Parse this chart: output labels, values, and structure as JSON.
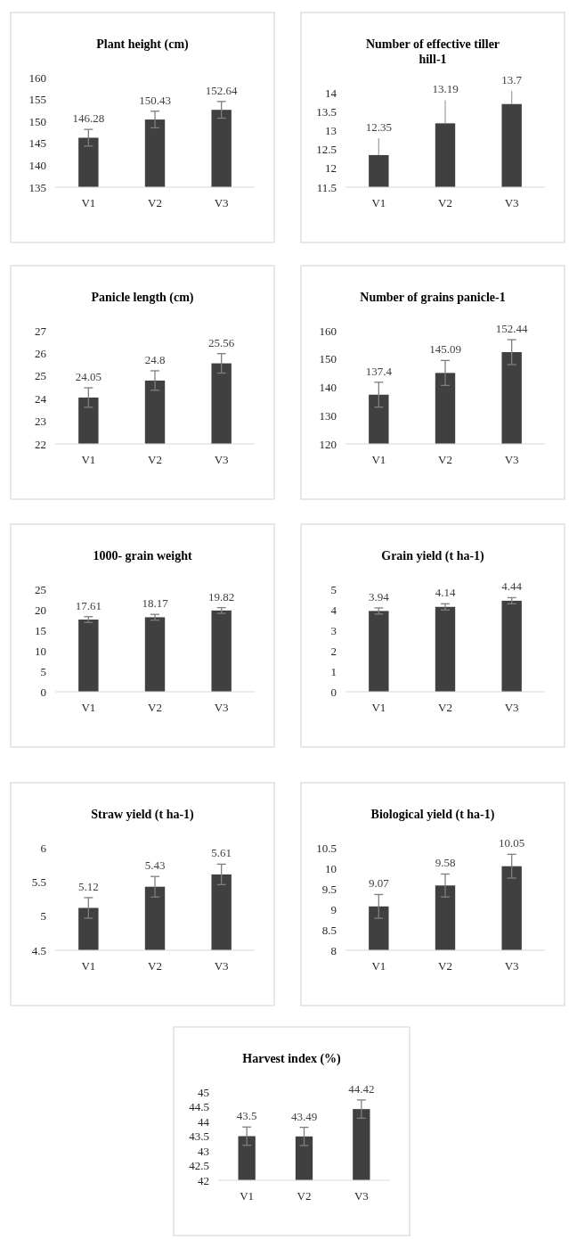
{
  "chart_data": [
    {
      "type": "bar",
      "title": "Plant height (cm)",
      "categories": [
        "V1",
        "V2",
        "V3"
      ],
      "values": [
        146.28,
        150.43,
        152.64
      ],
      "errors": [
        1.9,
        1.9,
        1.9
      ],
      "color": "#404040",
      "ylim": [
        135,
        160
      ],
      "yticks": [
        135,
        140,
        145,
        150,
        155,
        160
      ],
      "data_labels": true
    },
    {
      "type": "bar",
      "title": "Number of effective tiller hill-1",
      "categories": [
        "V1",
        "V2",
        "V3"
      ],
      "values": [
        12.35,
        13.19,
        13.7
      ],
      "errors": [
        [
          12.35,
          12.8
        ],
        [
          13.19,
          13.8
        ],
        [
          13.7,
          14.05
        ]
      ],
      "color": "#404040",
      "ylim": [
        11.5,
        14
      ],
      "yticks": [
        11.5,
        12,
        12.5,
        13,
        13.5,
        14
      ],
      "data_labels": true
    },
    {
      "type": "bar",
      "title": "Panicle length (cm)",
      "categories": [
        "V1",
        "V2",
        "V3"
      ],
      "values": [
        24.05,
        24.8,
        25.56
      ],
      "errors": [
        0.43,
        0.43,
        0.43
      ],
      "color": "#404040",
      "ylim": [
        22,
        27
      ],
      "yticks": [
        22,
        23,
        24,
        25,
        26,
        27
      ],
      "data_labels": true
    },
    {
      "type": "bar",
      "title": "Number of grains panicle-1",
      "categories": [
        "V1",
        "V2",
        "V3"
      ],
      "values": [
        137.4,
        145.09,
        152.44
      ],
      "errors": [
        4.4,
        4.4,
        4.4
      ],
      "color": "#404040",
      "ylim": [
        120,
        160
      ],
      "yticks": [
        120,
        130,
        140,
        150,
        160
      ],
      "data_labels": true
    },
    {
      "type": "bar",
      "title": "1000- grain weight",
      "categories": [
        "V1",
        "V2",
        "V3"
      ],
      "values": [
        17.61,
        18.17,
        19.82
      ],
      "errors": [
        0.7,
        0.7,
        0.7
      ],
      "color": "#404040",
      "ylim": [
        0,
        25
      ],
      "yticks": [
        0,
        5,
        10,
        15,
        20,
        25
      ],
      "data_labels": true
    },
    {
      "type": "bar",
      "title": "Grain yield (t ha-1)",
      "categories": [
        "V1",
        "V2",
        "V3"
      ],
      "values": [
        3.94,
        4.14,
        4.44
      ],
      "errors": [
        0.15,
        0.15,
        0.15
      ],
      "color": "#404040",
      "ylim": [
        0,
        5
      ],
      "yticks": [
        0,
        1,
        2,
        3,
        4,
        5
      ],
      "data_labels": true
    },
    {
      "type": "bar",
      "title": "Straw yield (t ha-1)",
      "categories": [
        "V1",
        "V2",
        "V3"
      ],
      "values": [
        5.12,
        5.43,
        5.61
      ],
      "errors": [
        0.15,
        0.15,
        0.15
      ],
      "color": "#404040",
      "ylim": [
        4.5,
        6
      ],
      "yticks": [
        4.5,
        5,
        5.5,
        6
      ],
      "data_labels": true
    },
    {
      "type": "bar",
      "title": "Biological yield (t ha-1)",
      "categories": [
        "V1",
        "V2",
        "V3"
      ],
      "values": [
        9.07,
        9.58,
        10.05
      ],
      "errors": [
        0.29,
        0.28,
        0.29
      ],
      "color": "#404040",
      "ylim": [
        8,
        10.5
      ],
      "yticks": [
        8,
        8.5,
        9,
        9.5,
        10,
        10.5
      ],
      "data_labels": true
    },
    {
      "type": "bar",
      "title": "Harvest index (%)",
      "categories": [
        "V1",
        "V2",
        "V3"
      ],
      "values": [
        43.5,
        43.49,
        44.42
      ],
      "errors": [
        0.31,
        0.31,
        0.31
      ],
      "color": "#404040",
      "ylim": [
        42,
        45
      ],
      "yticks": [
        42,
        42.5,
        43,
        43.5,
        44,
        44.5,
        45
      ],
      "data_labels": true
    }
  ]
}
